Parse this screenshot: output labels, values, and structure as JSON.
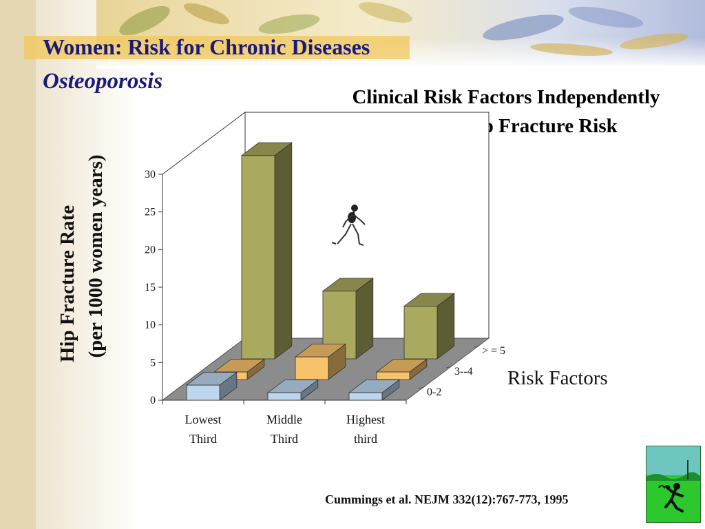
{
  "slide": {
    "title": "Women: Risk for Chronic Diseases",
    "subtitle": "Osteoporosis",
    "heading_line1": "Clinical Risk Factors Independently",
    "heading_line2": "Predict Hip Fracture Risk",
    "citation": "Cummings et al. NEJM 332(12):767-773, 1995",
    "icons": [
      "walking-skeleton-icon",
      "runner-logo-icon"
    ]
  },
  "chart_data": {
    "type": "bar",
    "style": "3d-clustered-depth",
    "categories": [
      [
        "Lowest",
        "Third"
      ],
      [
        "Middle",
        "Third"
      ],
      [
        "Highest",
        "third"
      ]
    ],
    "ylabel_line1": "Hip Fracture Rate",
    "ylabel_line2": "(per 1000 women years)",
    "zlabel": "Risk Factors",
    "ylim": [
      0,
      30
    ],
    "yticks": [
      "0",
      "5",
      "10",
      "15",
      "20",
      "25",
      "30"
    ],
    "series": [
      {
        "name": "0-2",
        "values": [
          2,
          1,
          1
        ],
        "color": "#bcd6ee"
      },
      {
        "name": "3--4",
        "values": [
          1,
          3,
          1
        ],
        "color": "#f7c26a"
      },
      {
        "name": "> = 5",
        "values": [
          27,
          9,
          7
        ],
        "color": "#a9a95f"
      }
    ],
    "grid": false,
    "floor_color": "#8c8c8c"
  }
}
